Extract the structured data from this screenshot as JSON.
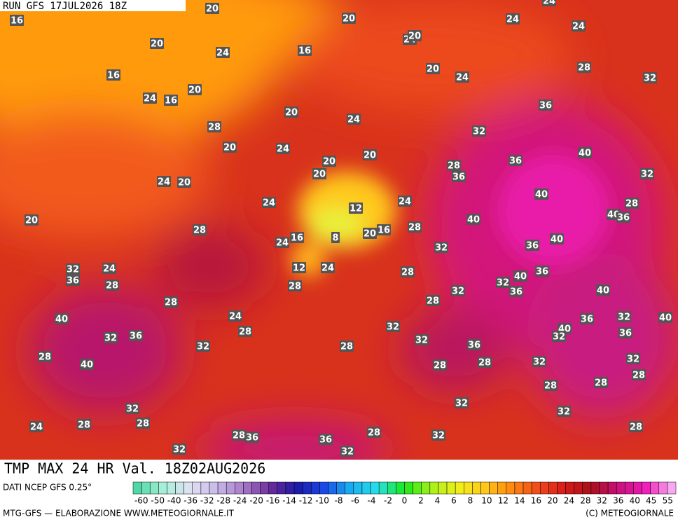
{
  "header": {
    "run": "RUN GFS 17JUL2026 18Z",
    "title": "TMP MAX 24 HR Val. 18Z02AUG2026"
  },
  "footer": {
    "source": "DATI NCEP GFS 0.25°",
    "credit": "MTG-GFS — ELABORAZIONE WWW.METEOGIORNALE.IT",
    "copyright": "(C) METEOGIORNALE"
  },
  "colorbar": {
    "ticks": [
      -60,
      -50,
      -40,
      -36,
      -32,
      -28,
      -24,
      -20,
      -16,
      -14,
      -12,
      -10,
      -8,
      -6,
      -4,
      -2,
      0,
      2,
      4,
      6,
      8,
      10,
      12,
      14,
      16,
      20,
      24,
      28,
      32,
      36,
      40,
      45,
      55
    ]
  },
  "contours": {
    "labels": [
      16,
      20,
      20,
      24,
      24,
      24,
      24,
      20,
      20,
      24,
      16,
      16,
      20,
      24,
      28,
      32,
      24,
      16,
      20,
      36,
      20,
      24,
      28,
      32,
      20,
      24,
      20,
      20,
      40,
      36,
      28,
      20,
      36,
      32,
      24,
      20,
      40,
      24,
      12,
      24,
      28,
      40,
      36,
      20,
      28,
      40,
      16,
      28,
      16,
      20,
      8,
      24,
      36,
      40,
      32,
      32,
      24,
      12,
      24,
      36,
      28,
      28,
      28,
      36,
      40,
      32,
      36,
      32,
      40,
      28,
      28,
      24,
      40,
      36,
      32,
      40,
      28,
      32,
      40,
      32,
      36,
      32,
      36,
      32,
      32,
      28,
      36,
      28,
      40,
      28,
      32,
      32,
      28,
      28,
      28,
      28,
      32,
      32,
      32,
      28,
      24,
      28,
      28,
      28,
      28,
      36,
      32,
      32,
      32,
      36
    ]
  }
}
